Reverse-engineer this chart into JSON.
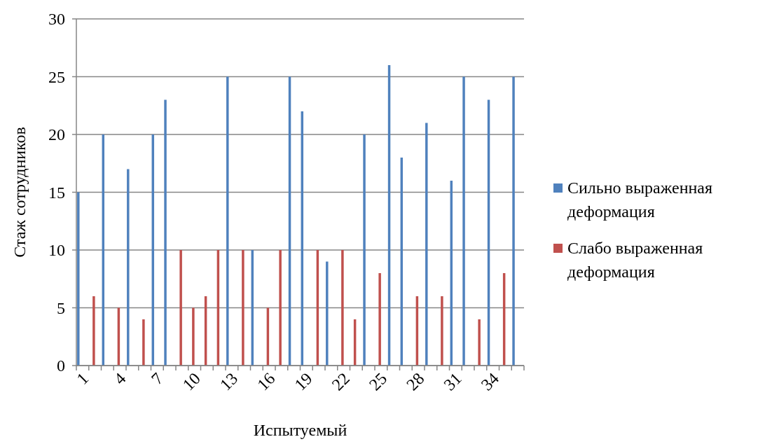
{
  "chart_data": {
    "type": "bar",
    "xlabel": "Испытуемый",
    "ylabel": "Стаж сотрудников",
    "categories": [
      "1",
      null,
      null,
      "4",
      null,
      null,
      "7",
      null,
      null,
      "10",
      null,
      null,
      "13",
      null,
      null,
      "16",
      null,
      null,
      "19",
      null,
      null,
      "22",
      null,
      null,
      "25",
      null,
      null,
      "28",
      null,
      null,
      "31",
      null,
      null,
      "34",
      null,
      null
    ],
    "series": [
      {
        "name": "Сильно выраженная деформация",
        "color": "#4f81bd",
        "values": [
          15,
          null,
          20,
          null,
          17,
          null,
          20,
          23,
          null,
          null,
          null,
          null,
          25,
          null,
          10,
          null,
          null,
          25,
          22,
          null,
          9,
          null,
          null,
          20,
          null,
          26,
          18,
          null,
          21,
          null,
          16,
          25,
          null,
          23,
          null,
          25
        ]
      },
      {
        "name": "Слабо выраженная деформация",
        "color": "#c0504d",
        "values": [
          null,
          6,
          null,
          5,
          null,
          4,
          null,
          null,
          10,
          5,
          6,
          10,
          null,
          10,
          null,
          5,
          10,
          null,
          null,
          10,
          null,
          10,
          4,
          null,
          8,
          null,
          null,
          6,
          null,
          6,
          null,
          null,
          4,
          null,
          8,
          null
        ]
      }
    ],
    "ylim": [
      0,
      30
    ],
    "yticks": [
      0,
      5,
      10,
      15,
      20,
      25,
      30
    ],
    "grid": "y",
    "legend": "right"
  }
}
